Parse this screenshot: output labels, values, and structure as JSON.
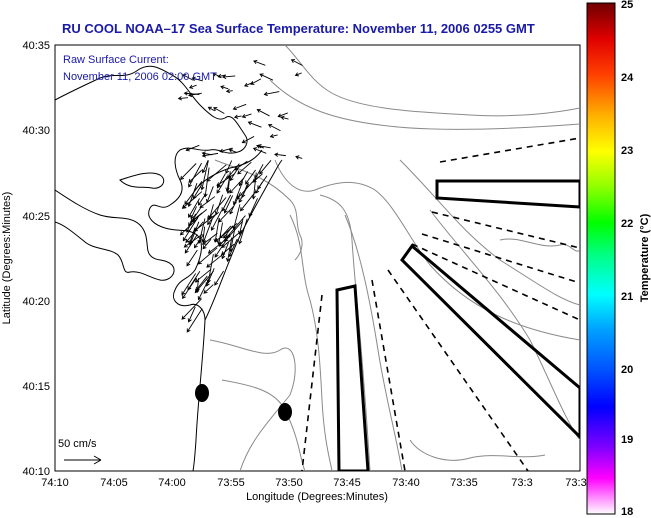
{
  "title": "RU COOL  NOAA–17  Sea Surface Temperature:  November 11, 2006 0255 GMT",
  "overlay": {
    "line1": "Raw Surface Current:",
    "line2": "November 11, 2006 02:00 GMT"
  },
  "axes": {
    "xlabel": "Longitude (Degrees:Minutes)",
    "ylabel": "Latitude (Degrees:Minutes)",
    "xticks": [
      "74:10",
      "74:05",
      "74:00",
      "73:55",
      "73:50",
      "73:45",
      "73:40",
      "73:35",
      "73:3"
    ],
    "yticks": [
      "40:35",
      "40:30",
      "40:25",
      "40:20",
      "40:15",
      "40:10"
    ]
  },
  "scale_label": "50 cm/s",
  "colorbar": {
    "label": "Temperature (°C)",
    "ticks": [
      "25",
      "24",
      "23",
      "22",
      "21",
      "20",
      "19",
      "18"
    ],
    "colors": [
      "#ff00ff",
      "#8000ff",
      "#0000ff",
      "#0080ff",
      "#00ffff",
      "#00ff80",
      "#00ff00",
      "#80ff00",
      "#ffff00",
      "#ffc000",
      "#ff8000",
      "#ff0000",
      "#800000"
    ]
  }
}
